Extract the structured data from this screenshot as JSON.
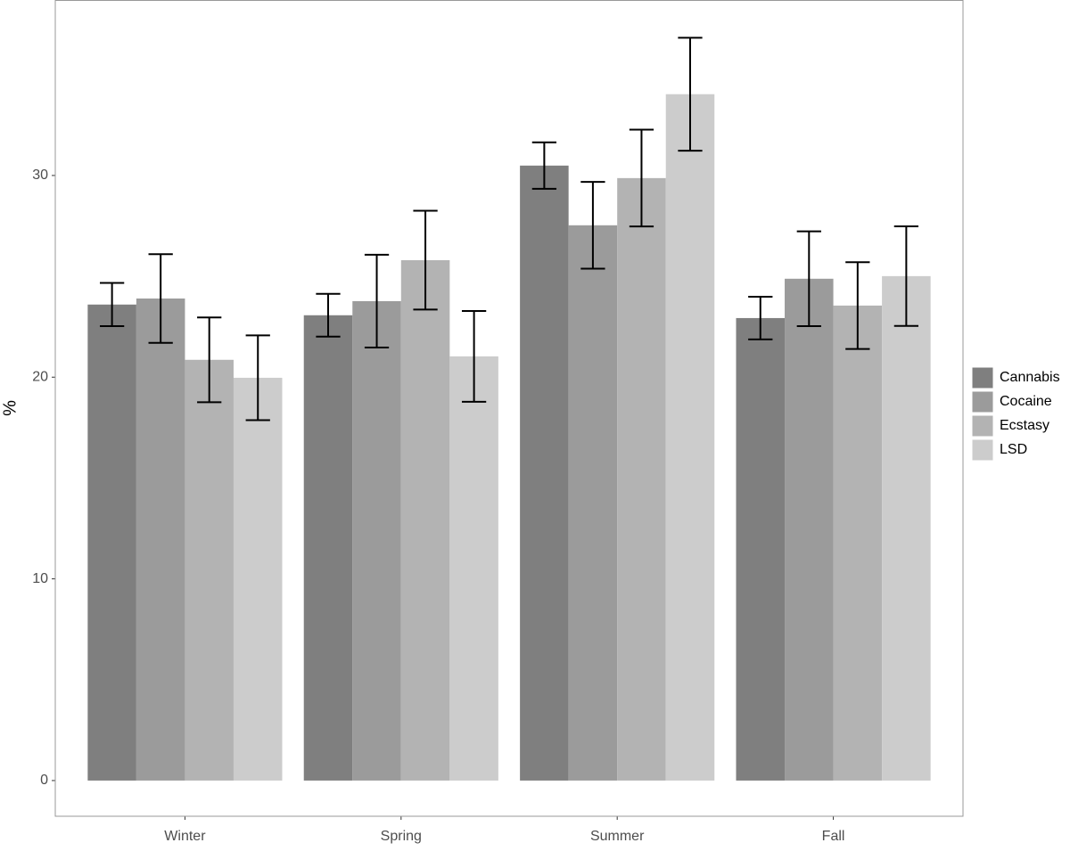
{
  "chart_data": {
    "type": "bar",
    "y_label": "%",
    "categories": [
      "Winter",
      "Spring",
      "Summer",
      "Fall"
    ],
    "series": [
      {
        "name": "Cannabis",
        "color": "#7f7f7f",
        "values": [
          23.6,
          23.07,
          30.49,
          22.93
        ],
        "errors": [
          1.07,
          1.06,
          1.15,
          1.06
        ]
      },
      {
        "name": "Cocaine",
        "color": "#9b9b9b",
        "values": [
          23.9,
          23.77,
          27.53,
          24.88
        ],
        "errors": [
          2.2,
          2.3,
          2.15,
          2.35
        ]
      },
      {
        "name": "Ecstasy",
        "color": "#b3b3b3",
        "values": [
          20.86,
          25.8,
          29.87,
          23.55
        ],
        "errors": [
          2.1,
          2.45,
          2.4,
          2.15
        ]
      },
      {
        "name": "LSD",
        "color": "#cccccc",
        "values": [
          19.97,
          21.03,
          34.03,
          25.01
        ],
        "errors": [
          2.1,
          2.25,
          2.8,
          2.47
        ]
      }
    ],
    "ylim": [
      -1.77,
      38.7
    ],
    "yticks": [
      0,
      10,
      20,
      30
    ],
    "grid": false,
    "legend": "right"
  }
}
